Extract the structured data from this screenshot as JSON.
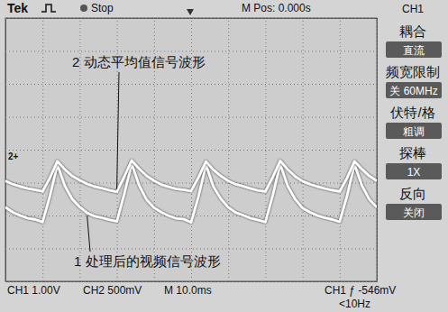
{
  "chart_data": {
    "type": "line",
    "header": [
      "Tek",
      "Stop",
      "M Pos: 0.000s",
      "CH1"
    ],
    "menu": [
      {
        "label": "耦合",
        "value": "直流"
      },
      {
        "label": "频宽限制",
        "value": "关 60MHz"
      },
      {
        "label": "伏特/格",
        "value": "粗调"
      },
      {
        "label": "探棒",
        "value": "1X"
      },
      {
        "label": "反向",
        "value": "关闭"
      }
    ],
    "footer": [
      "CH1 1.00V",
      "CH2 500mV",
      "M 10.0ms",
      "CH1 ƒ -546mV",
      "<10Hz"
    ],
    "annotations": [
      "2+"
    ],
    "x": [
      -50,
      -48,
      -46,
      -44,
      -42,
      -40,
      -38,
      -36,
      -34,
      -32,
      -30,
      -28,
      -26,
      -24,
      -22,
      -20,
      -18,
      -16,
      -14,
      -12,
      -10,
      -8,
      -6,
      -4,
      -2,
      0,
      2,
      4,
      6,
      8,
      10,
      12,
      14,
      16,
      18,
      20,
      22,
      24,
      26,
      28,
      30,
      32,
      34,
      36,
      38,
      40,
      42,
      44,
      46,
      48,
      50
    ],
    "series": [
      {
        "name": "1 处理后的视频信号波形",
        "color": "#ffffff",
        "values": [
          -1.75,
          -1.9,
          -2.0,
          -2.08,
          -2.12,
          -2.2,
          -1.4,
          -0.45,
          -1.1,
          -1.5,
          -1.74,
          -1.92,
          -2.02,
          -2.07,
          -2.13,
          -2.18,
          -1.35,
          -0.43,
          -1.08,
          -1.52,
          -1.76,
          -1.9,
          -2.01,
          -2.09,
          -2.11,
          -2.21,
          -1.42,
          -0.46,
          -1.12,
          -1.49,
          -1.75,
          -1.91,
          -1.99,
          -2.08,
          -2.14,
          -2.2,
          -1.38,
          -0.44,
          -1.1,
          -1.5,
          -1.77,
          -1.9,
          -2.0,
          -2.07,
          -2.12,
          -2.19,
          -1.4,
          -0.45,
          -1.09,
          -1.51,
          -1.75
        ]
      },
      {
        "name": "2 动态平均值信号波形",
        "color": "#ffffff",
        "values": [
          -0.95,
          -1.05,
          -1.12,
          -1.18,
          -1.22,
          -1.27,
          -0.85,
          -0.35,
          -0.6,
          -0.8,
          -0.93,
          -1.04,
          -1.12,
          -1.17,
          -1.23,
          -1.28,
          -0.82,
          -0.33,
          -0.58,
          -0.79,
          -0.94,
          -1.06,
          -1.13,
          -1.19,
          -1.22,
          -1.26,
          -0.84,
          -0.36,
          -0.61,
          -0.8,
          -0.95,
          -1.05,
          -1.11,
          -1.18,
          -1.24,
          -1.27,
          -0.83,
          -0.34,
          -0.6,
          -0.81,
          -0.96,
          -1.05,
          -1.12,
          -1.18,
          -1.23,
          -1.27,
          -0.86,
          -0.35,
          -0.59,
          -0.8,
          -0.95
        ]
      }
    ],
    "xlim": [
      -50,
      50
    ],
    "ylim": [
      -4,
      4
    ],
    "xticks": [
      -50,
      -40,
      -30,
      -20,
      -10,
      0,
      10,
      20,
      30,
      40,
      50
    ],
    "yticks": [
      -4,
      -3,
      -2,
      -1,
      0,
      1,
      2,
      3,
      4
    ],
    "grid": true,
    "tick_labels": false
  }
}
